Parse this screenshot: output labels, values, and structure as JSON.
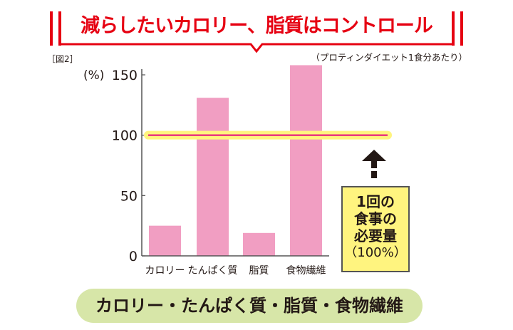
{
  "header": {
    "title": "減らしたいカロリー、脂質はコントロール",
    "accent_color": "#e60012"
  },
  "figure_label": "［図2］",
  "note": "（プロティンダイエット1食分あたり）",
  "legend_box": {
    "lines": [
      "1回の",
      "食事の",
      "必要量"
    ],
    "value": "（100%）",
    "color": "#fff47f"
  },
  "bottom_label": "カロリー・たんぱく質・脂質・食物繊維",
  "chart_data": {
    "type": "bar",
    "categories": [
      "カロリー",
      "たんぱく質",
      "脂質",
      "食物繊維"
    ],
    "values": [
      25,
      131,
      19,
      158
    ],
    "ylabel": "(%)",
    "yticks": [
      0,
      50,
      100,
      150
    ],
    "ylim": [
      0,
      160
    ],
    "reference_line": {
      "value": 100,
      "color": "#e4007f",
      "highlight": "#fff47f"
    },
    "bar_color": "#f19ec2",
    "grid": false
  }
}
